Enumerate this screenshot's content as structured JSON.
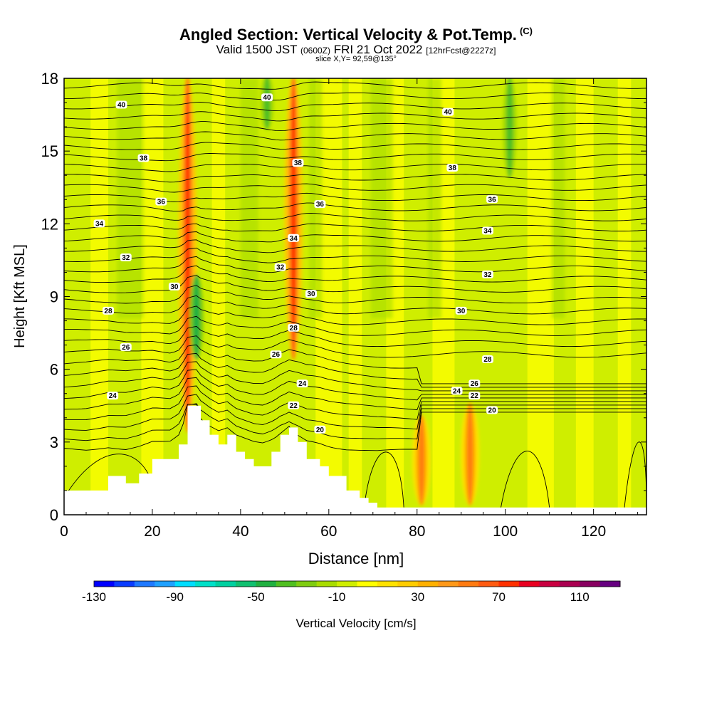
{
  "header": {
    "title": "Angled Section: Vertical Velocity & Pot.Temp.",
    "copyright": "(C)",
    "valid_prefix": "Valid 1500 JST",
    "valid_utc": "(0600Z)",
    "valid_date": "FRI 21 Oct 2022",
    "forecast_info": "[12hrFcst@2227z]",
    "slice_info": "slice X,Y= 92,59@135°"
  },
  "chart_data": {
    "type": "contour",
    "xlabel": "Distance [nm]",
    "ylabel": "Height [Kft MSL]",
    "xlim": [
      0,
      132
    ],
    "ylim": [
      0,
      18
    ],
    "xticks": [
      "0",
      "20",
      "40",
      "60",
      "80",
      "100",
      "120"
    ],
    "yticks": [
      "0",
      "3",
      "6",
      "9",
      "12",
      "15",
      "18"
    ],
    "terrain_profile": {
      "x": [
        0,
        5,
        10,
        14,
        17,
        20,
        24,
        26,
        28,
        30,
        31,
        33,
        35,
        37,
        39,
        41,
        43,
        45,
        47,
        49,
        51,
        53,
        55,
        58,
        60,
        64,
        67,
        69,
        71,
        72,
        132
      ],
      "height": [
        1.0,
        1.0,
        1.6,
        1.3,
        1.7,
        2.3,
        2.3,
        2.9,
        4.5,
        4.5,
        3.9,
        3.3,
        2.9,
        3.3,
        2.6,
        2.3,
        2.0,
        2.0,
        2.6,
        3.3,
        3.6,
        3.0,
        2.3,
        2.0,
        1.6,
        1.0,
        0.7,
        0.5,
        0.3,
        0.3,
        0.3
      ]
    },
    "vertical_velocity_features": [
      {
        "kind": "updraft",
        "x": 28,
        "zmin": 3.5,
        "zmax": 18,
        "peak": 70
      },
      {
        "kind": "downdraft",
        "x": 30,
        "zmin": 6.5,
        "zmax": 9.8,
        "peak": -50
      },
      {
        "kind": "updraft",
        "x": 52,
        "zmin": 6.5,
        "zmax": 18,
        "peak": 70
      },
      {
        "kind": "downdraft",
        "x": 46,
        "zmin": 16,
        "zmax": 18,
        "peak": -40
      },
      {
        "kind": "downdraft",
        "x": 101,
        "zmin": 14,
        "zmax": 18,
        "peak": -40
      },
      {
        "kind": "updraft",
        "x": 81,
        "zmin": 0.5,
        "zmax": 4,
        "peak": 50
      },
      {
        "kind": "updraft",
        "x": 92,
        "zmin": 0.5,
        "zmax": 4.5,
        "peak": 50
      }
    ],
    "isentrope_labels": [
      {
        "value": "40",
        "x": 13,
        "z": 16.9
      },
      {
        "value": "40",
        "x": 46,
        "z": 17.2
      },
      {
        "value": "40",
        "x": 87,
        "z": 16.6
      },
      {
        "value": "38",
        "x": 18,
        "z": 14.7
      },
      {
        "value": "38",
        "x": 53,
        "z": 14.5
      },
      {
        "value": "38",
        "x": 88,
        "z": 14.3
      },
      {
        "value": "36",
        "x": 22,
        "z": 12.9
      },
      {
        "value": "36",
        "x": 58,
        "z": 12.8
      },
      {
        "value": "36",
        "x": 97,
        "z": 13.0
      },
      {
        "value": "34",
        "x": 8,
        "z": 12.0
      },
      {
        "value": "34",
        "x": 52,
        "z": 11.4
      },
      {
        "value": "34",
        "x": 96,
        "z": 11.7
      },
      {
        "value": "32",
        "x": 14,
        "z": 10.6
      },
      {
        "value": "32",
        "x": 49,
        "z": 10.2
      },
      {
        "value": "32",
        "x": 96,
        "z": 9.9
      },
      {
        "value": "30",
        "x": 25,
        "z": 9.4
      },
      {
        "value": "30",
        "x": 56,
        "z": 9.1
      },
      {
        "value": "30",
        "x": 90,
        "z": 8.4
      },
      {
        "value": "28",
        "x": 10,
        "z": 8.4
      },
      {
        "value": "28",
        "x": 52,
        "z": 7.7
      },
      {
        "value": "28",
        "x": 96,
        "z": 6.4
      },
      {
        "value": "26",
        "x": 14,
        "z": 6.9
      },
      {
        "value": "26",
        "x": 48,
        "z": 6.6
      },
      {
        "value": "26",
        "x": 93,
        "z": 5.4
      },
      {
        "value": "24",
        "x": 11,
        "z": 4.9
      },
      {
        "value": "24",
        "x": 54,
        "z": 5.4
      },
      {
        "value": "24",
        "x": 89,
        "z": 5.1
      },
      {
        "value": "22",
        "x": 52,
        "z": 4.5
      },
      {
        "value": "22",
        "x": 93,
        "z": 4.9
      },
      {
        "value": "20",
        "x": 58,
        "z": 3.5
      },
      {
        "value": "20",
        "x": 97,
        "z": 4.3
      }
    ],
    "colorbar": {
      "label": "Vertical Velocity [cm/s]",
      "tick_labels": [
        "-130",
        "-90",
        "-50",
        "-10",
        "30",
        "70",
        "110"
      ],
      "bins": [
        -130,
        -120,
        -110,
        -100,
        -90,
        -80,
        -70,
        -60,
        -50,
        -40,
        -30,
        -20,
        -10,
        0,
        10,
        20,
        30,
        40,
        50,
        60,
        70,
        80,
        90,
        100,
        110,
        120
      ],
      "colors": [
        "#0000ff",
        "#0a3cff",
        "#1e78ff",
        "#1ea0ff",
        "#00ddff",
        "#00e0c8",
        "#00d0a0",
        "#10c070",
        "#20b040",
        "#50bf20",
        "#7fcc10",
        "#a8dc00",
        "#cfee00",
        "#ffff00",
        "#ffe200",
        "#ffcc00",
        "#ffb000",
        "#ff9818",
        "#ff7a10",
        "#ff5a10",
        "#ff3000",
        "#e80020",
        "#c80040",
        "#aa0050",
        "#880060",
        "#660080"
      ]
    },
    "grid": false,
    "legend": "colorbar-bottom"
  }
}
